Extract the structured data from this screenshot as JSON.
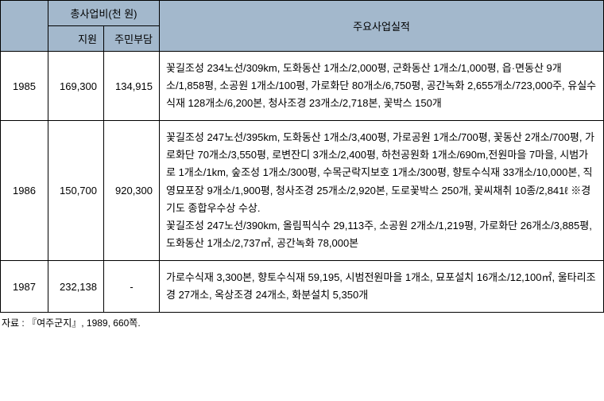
{
  "headers": {
    "cost": "총사업비(천 원)",
    "support": "지원",
    "resident": "주민부담",
    "results": "주요사업실적"
  },
  "rows": [
    {
      "year": "1985",
      "support": "169,300",
      "resident": "134,915",
      "desc": "꽃길조성 234노선/309km, 도화동산 1개소/2,000평, 군화동산 1개소/1,000평, 읍·면동산 9개소/1,858평, 소공원 1개소/100평, 가로화단 80개소/6,750평, 공간녹화 2,655개소/723,000주, 유실수식재 128개소/6,200본, 청사조경 23개소/2,718본, 꽃박스 150개"
    },
    {
      "year": "1986",
      "support": "150,700",
      "resident": "920,300",
      "desc": "꽃길조성 247노선/395km, 도화동산 1개소/3,400평, 가로공원 1개소/700평, 꽃동산 2개소/700평, 가로화단 70개소/3,550평, 로변잔디 3개소/2,400평, 하천공원화 1개소/690m,전원마을 7마을, 시범가로 1개소/1km, 숲조성 1개소/300평, 수목군락지보호 1개소/300평, 향토수식재 33개소/10,000본, 직영묘포장 9개소/1,900평, 청사조경 25개소/2,920본, 도로꽃박스 250개, 꽃씨채취 10종/2,841ℓ  ※경기도 종합우수상 수상.\n꽃길조성 247노선/390km, 올림픽식수 29,113주, 소공원 2개소/1,219평, 가로화단 26개소/3,885평, 도화동산 1개소/2,737㎡, 공간녹화 78,000본"
    },
    {
      "year": "1987",
      "support": "232,138",
      "resident": "-",
      "desc": "가로수식재 3,300본, 향토수식재 59,195, 시범전원마을 1개소, 묘포설치 16개소/12,100㎡, 울타리조경 27개소, 옥상조경 24개소, 화분설치 5,350개"
    }
  ],
  "source": "자료 : 『여주군지』, 1989, 660쪽."
}
